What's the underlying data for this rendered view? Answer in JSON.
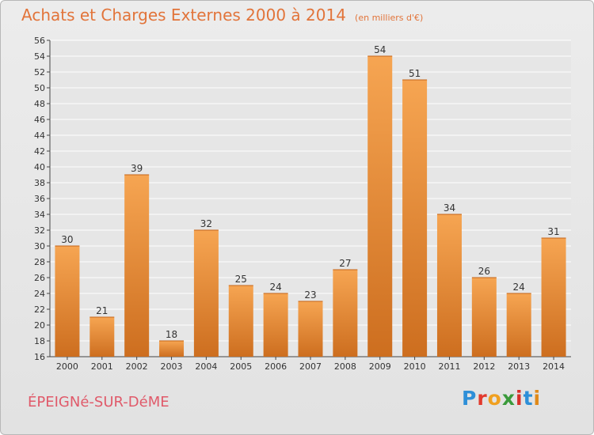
{
  "header": {
    "title": "Achats et Charges Externes 2000 à 2014",
    "subtitle": "(en milliers d'€)"
  },
  "footer": {
    "commune": "ÉPEIGNé-SUR-DéME",
    "logo": "Proxiti"
  },
  "colors": {
    "title": "#e2743a",
    "commune": "#e05a6a",
    "bar_light": "#f6a552",
    "bar_dark": "#cd6e1f",
    "logo": [
      "#2e8fd8",
      "#e23a2e",
      "#f0a020",
      "#3a9a3a",
      "#d7302a",
      "#2e8fd8",
      "#e08a1a"
    ]
  },
  "chart_data": {
    "type": "bar",
    "title": "Achats et Charges Externes 2000 à 2014",
    "subtitle": "(en milliers d'€)",
    "xlabel": "",
    "ylabel": "",
    "categories": [
      "2000",
      "2001",
      "2002",
      "2003",
      "2004",
      "2005",
      "2006",
      "2007",
      "2008",
      "2009",
      "2010",
      "2011",
      "2012",
      "2013",
      "2014"
    ],
    "values": [
      30,
      21,
      39,
      18,
      32,
      25,
      24,
      23,
      27,
      54,
      51,
      34,
      26,
      24,
      31
    ],
    "ylim": [
      16,
      56
    ],
    "yticks": [
      16,
      18,
      20,
      22,
      24,
      26,
      28,
      30,
      32,
      34,
      36,
      38,
      40,
      42,
      44,
      46,
      48,
      50,
      52,
      54,
      56
    ],
    "grid": true,
    "data_labels": true
  }
}
